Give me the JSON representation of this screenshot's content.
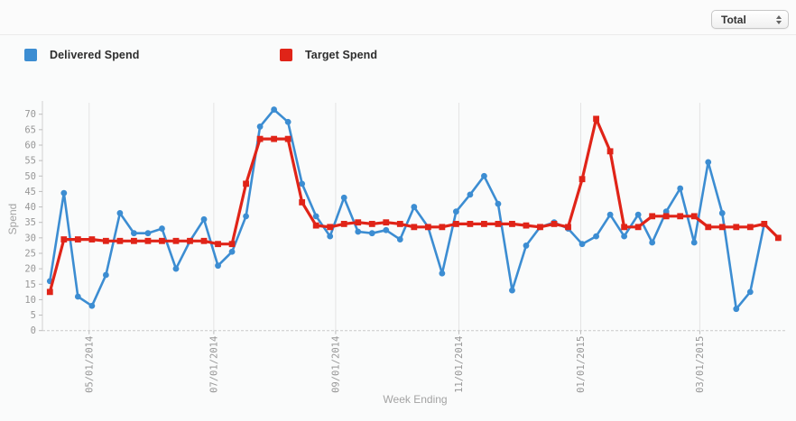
{
  "toolbar": {
    "filter_select": {
      "value": "Total"
    }
  },
  "legend": [
    {
      "label": "Delivered Spend",
      "color": "#3c8dd2"
    },
    {
      "label": "Target Spend",
      "color": "#e02418"
    }
  ],
  "chart_data": {
    "type": "line",
    "title": "",
    "xlabel": "Week Ending",
    "ylabel": "Spend",
    "ylim": [
      0,
      70
    ],
    "y_ticks": [
      0,
      5,
      10,
      15,
      20,
      25,
      30,
      35,
      40,
      45,
      50,
      55,
      60,
      65,
      70
    ],
    "grid": "vertical-only",
    "legend_position": "top",
    "x_unit": "weekly points",
    "x_ticks": [
      {
        "label": "05/01/2014",
        "pos": 2.8
      },
      {
        "label": "07/01/2014",
        "pos": 11.7
      },
      {
        "label": "09/01/2014",
        "pos": 20.4
      },
      {
        "label": "11/01/2014",
        "pos": 29.2
      },
      {
        "label": "01/01/2015",
        "pos": 37.9
      },
      {
        "label": "03/01/2015",
        "pos": 46.4
      }
    ],
    "series": [
      {
        "name": "Delivered Spend",
        "color": "#3c8dd2",
        "marker": "circle",
        "values": [
          16,
          44.5,
          11,
          8,
          18,
          38,
          31.5,
          31.5,
          33,
          20,
          29,
          36,
          21,
          25.5,
          37,
          66,
          71.5,
          67.5,
          47.5,
          37,
          30.5,
          43,
          32,
          31.5,
          32.5,
          29.5,
          40,
          33.5,
          18.5,
          38.5,
          44,
          50,
          41,
          13,
          27.5,
          33.5,
          35,
          33,
          28,
          30.5,
          37.5,
          30.5,
          37.5,
          28.5,
          38.5,
          46,
          28.5,
          54.5,
          38,
          7,
          12.5,
          34.5,
          30
        ]
      },
      {
        "name": "Target Spend",
        "color": "#e02418",
        "marker": "square",
        "values": [
          12.5,
          29.5,
          29.5,
          29.5,
          29,
          29,
          29,
          29,
          29,
          29,
          29,
          29,
          28,
          28,
          47.5,
          62,
          62,
          62,
          41.5,
          34,
          33.5,
          34.5,
          35,
          34.5,
          35,
          34.5,
          33.5,
          33.5,
          33.5,
          34.5,
          34.5,
          34.5,
          34.5,
          34.5,
          34,
          33.5,
          34.5,
          33.5,
          49,
          68.5,
          58,
          33.5,
          33.5,
          37,
          37,
          37,
          37,
          33.5,
          33.5,
          33.5,
          33.5,
          34.5,
          30
        ]
      }
    ]
  }
}
